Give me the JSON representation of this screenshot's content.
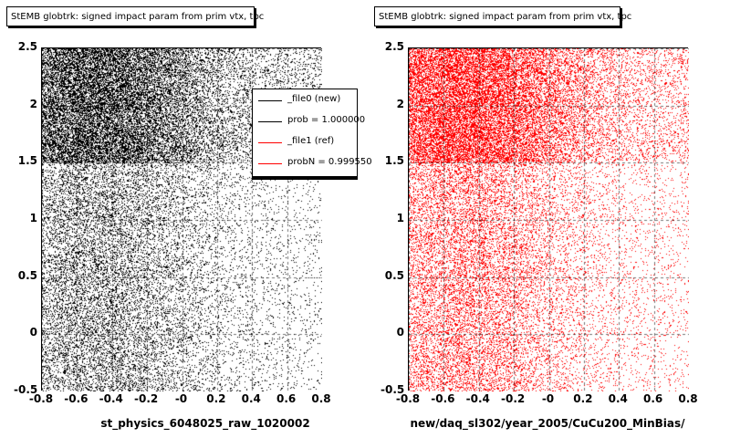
{
  "pads": [
    {
      "title": "StEMB globtrk: signed impact param from prim vtx, tpc",
      "xlabel": "st_physics_6048025_raw_1020002",
      "color": "#000000"
    },
    {
      "title": "StEMB globtrk: signed impact param from prim vtx, tpc",
      "xlabel": "new/daq_sl302/year_2005/CuCu200_MinBias/",
      "color": "#ff0000"
    }
  ],
  "legend": {
    "entries": [
      {
        "label": "_file0 (new)",
        "color": "#000000"
      },
      {
        "label": "prob = 1.000000",
        "color": "#000000"
      },
      {
        "label": "_file1 (ref)",
        "color": "#ff0000"
      },
      {
        "label": "probN = 0.999550",
        "color": "#ff0000"
      }
    ]
  },
  "chart_data": [
    {
      "type": "scatter",
      "title": "StEMB globtrk: signed impact param from prim vtx, tpc",
      "xlabel": "st_physics_6048025_raw_1020002",
      "ylabel": "",
      "xlim": [
        -0.8,
        0.8
      ],
      "ylim": [
        -0.5,
        2.5
      ],
      "xticks": [
        "-0.8",
        "-0.6",
        "-0.4",
        "-0.2",
        "-0",
        "0.2",
        "0.4",
        "0.6",
        "0.8"
      ],
      "yticks": [
        "-0.5",
        "0",
        "0.5",
        "1",
        "1.5",
        "2",
        "2.5"
      ],
      "grid": true,
      "series_color": "#000000",
      "density_regions": [
        {
          "y_range": [
            -0.5,
            1.5
          ],
          "description": "moderate density, higher at negative x"
        },
        {
          "y_range": [
            1.5,
            2.5
          ],
          "description": "high density, highest near x = -0.5"
        }
      ]
    },
    {
      "type": "scatter",
      "title": "StEMB globtrk: signed impact param from prim vtx, tpc",
      "xlabel": "new/daq_sl302/year_2005/CuCu200_MinBias/",
      "ylabel": "",
      "xlim": [
        -0.8,
        0.8
      ],
      "ylim": [
        -0.5,
        2.5
      ],
      "xticks": [
        "-0.8",
        "-0.6",
        "-0.4",
        "-0.2",
        "-0",
        "0.2",
        "0.4",
        "0.6",
        "0.8"
      ],
      "yticks": [
        "-0.5",
        "0",
        "0.5",
        "1",
        "1.5",
        "2",
        "2.5"
      ],
      "grid": true,
      "series_color": "#ff0000",
      "density_regions": [
        {
          "y_range": [
            -0.5,
            1.5
          ],
          "description": "moderate density, higher at negative x"
        },
        {
          "y_range": [
            1.5,
            2.5
          ],
          "description": "high density, highest near x = -0.5"
        }
      ]
    }
  ]
}
